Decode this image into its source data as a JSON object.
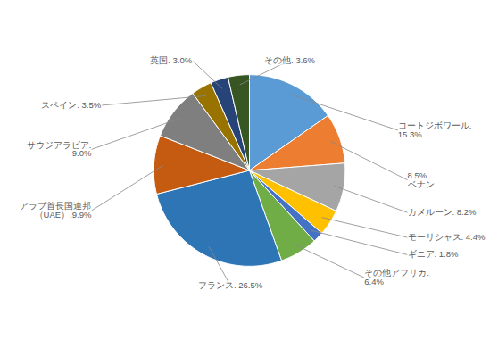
{
  "chart_data": {
    "type": "pie",
    "values": [
      15.3,
      8.5,
      8.2,
      4.4,
      1.8,
      6.4,
      26.5,
      9.9,
      9.0,
      3.5,
      3.0,
      3.6
    ],
    "colors": [
      "#5B9BD5",
      "#ED7D31",
      "#A5A5A5",
      "#FFC000",
      "#4472C4",
      "#70AD47",
      "#2E75B6",
      "#C55A11",
      "#7F7F7F",
      "#997300",
      "#264478",
      "#375623"
    ],
    "annotations": [
      "コートジボワール.\n15.3%",
      "8.5%\nベナン",
      "カメルーン. 8.2%",
      "モーリシャス. 4.4%",
      "ギニア. 1.8%",
      "その他アフリカ.\n6.4%",
      "フランス. 26.5%",
      "アラブ首長国連邦\n（UAE）.9.9%",
      "サウジアラビア.\n9.0%",
      "スペイン. 3.5%",
      "英国. 3.0%",
      "その他. 3.6%"
    ]
  }
}
